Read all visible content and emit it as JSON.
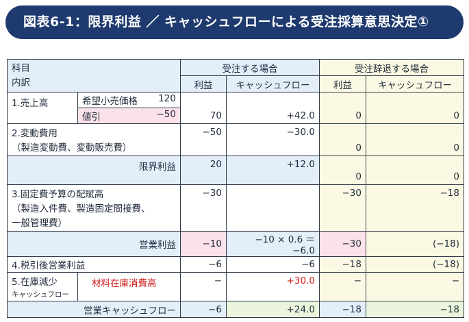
{
  "title": "図表6-1：限界利益 ／ キャッシュフローによる受注採算意思決定①",
  "header": {
    "item_line1": "科目",
    "item_line2": "内訳",
    "accept_case": "受注する場合",
    "decline_case": "受注辞退する場合",
    "profit": "利益",
    "cashflow": "キャッシュフロー"
  },
  "rows": {
    "sales": {
      "label": "1.売上高",
      "desired_price_label": "希望小売価格",
      "desired_price_value": "120",
      "discount_label": "値引",
      "discount_value": "−50",
      "accept_profit": "70",
      "accept_cf": "+42.0",
      "decline_profit": "0",
      "decline_cf": "0"
    },
    "variable_cost": {
      "label_line1": "2.変動費用",
      "label_line2": "（製造変動費、変動販売費）",
      "accept_profit": "−50",
      "accept_cf": "−30.0",
      "decline_profit": "0",
      "decline_cf": "0"
    },
    "marginal_profit": {
      "label": "限界利益",
      "accept_profit": "20",
      "accept_cf": "+12.0",
      "decline_profit": "0",
      "decline_cf": "0"
    },
    "fixed_cost": {
      "label_line1": "3.固定費予算の配賦高",
      "label_line2": "（製造入件費、製造固定間接費、",
      "label_line3": "一般管理費）",
      "accept_profit": "−30",
      "accept_cf": "",
      "decline_profit": "−30",
      "decline_cf": "−18"
    },
    "operating_profit": {
      "label": "営業利益",
      "accept_profit": "−10",
      "accept_cf": "−10 × 0.6 ＝ −6.0",
      "decline_profit": "−30",
      "decline_cf": "(−18)"
    },
    "after_tax": {
      "label": "4.税引後営業利益",
      "accept_profit": "−6",
      "accept_cf": "−6",
      "decline_profit": "−18",
      "decline_cf": "(−18)"
    },
    "inventory": {
      "label_line1": "5.在庫減少",
      "label_line2": "キャッシュフロー",
      "note": "材料在庫消費高",
      "accept_profit": "−",
      "accept_cf": "+30.0",
      "decline_profit": "−",
      "decline_cf": "−"
    },
    "operating_cf": {
      "label": "営業キャッシュフロー",
      "accept_profit": "−6",
      "accept_cf": "+24.0",
      "decline_profit": "−18",
      "decline_cf": "−18"
    }
  }
}
